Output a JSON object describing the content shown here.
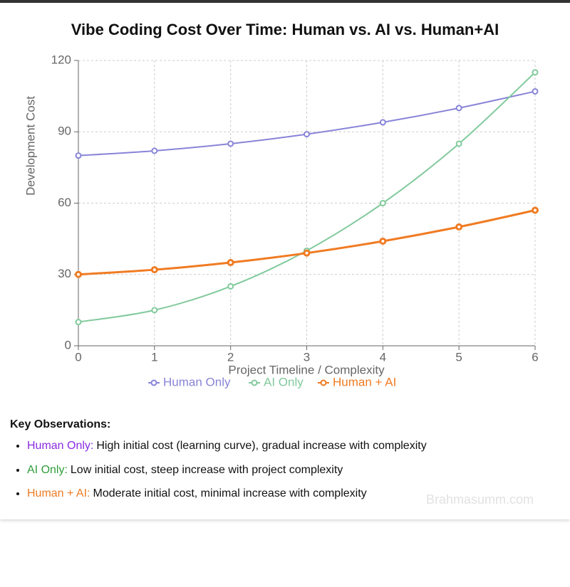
{
  "chart_data": {
    "type": "line",
    "title": "Vibe Coding Cost Over Time: Human vs. AI vs. Human+AI",
    "x_label": "Project Timeline / Complexity",
    "y_label": "Development Cost",
    "x": [
      0,
      1,
      2,
      3,
      4,
      5,
      6
    ],
    "series": [
      {
        "name": "Human Only",
        "color": "#8884d8",
        "values": [
          80,
          82,
          85,
          89,
          94,
          100,
          107
        ]
      },
      {
        "name": "AI Only",
        "color": "#82ca9d",
        "values": [
          10,
          15,
          25,
          40,
          60,
          85,
          115
        ]
      },
      {
        "name": "Human + AI",
        "color": "#f07b22",
        "values": [
          30,
          32,
          35,
          39,
          44,
          50,
          57
        ]
      }
    ],
    "xlim": [
      0,
      6
    ],
    "xticks": [
      0,
      1,
      2,
      3,
      4,
      5,
      6
    ],
    "ylim": [
      0,
      120
    ],
    "yticks": [
      0,
      30,
      60,
      90,
      120
    ],
    "grid": true
  },
  "observations": {
    "title": "Key Observations:",
    "items": [
      {
        "label": "Human Only:",
        "text": "High initial cost (learning curve), gradual increase with complexity"
      },
      {
        "label": "AI Only:",
        "text": "Low initial cost, steep increase with project complexity"
      },
      {
        "label": "Human + AI:",
        "text": "Moderate initial cost, minimal increase with complexity"
      }
    ]
  },
  "watermark": "Brahmasumm.com"
}
